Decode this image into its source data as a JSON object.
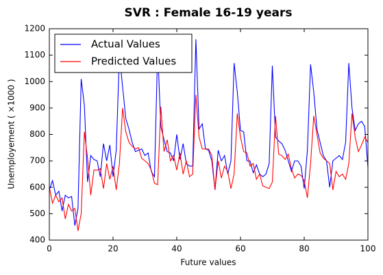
{
  "chart_data": {
    "type": "line",
    "title": "SVR : Female 16-19 years",
    "x_label": "Future values",
    "y_label": "Unemployement ( ×1000 )",
    "x": [
      0,
      1,
      2,
      3,
      4,
      5,
      6,
      7,
      8,
      9,
      10,
      11,
      12,
      13,
      14,
      15,
      16,
      17,
      18,
      19,
      20,
      21,
      22,
      23,
      24,
      25,
      26,
      27,
      28,
      29,
      30,
      31,
      32,
      33,
      34,
      35,
      36,
      37,
      38,
      39,
      40,
      41,
      42,
      43,
      44,
      45,
      46,
      47,
      48,
      49,
      50,
      51,
      52,
      53,
      54,
      55,
      56,
      57,
      58,
      59,
      60,
      61,
      62,
      63,
      64,
      65,
      66,
      67,
      68,
      69,
      70,
      71,
      72,
      73,
      74,
      75,
      76,
      77,
      78,
      79,
      80,
      81,
      82,
      83,
      84,
      85,
      86,
      87,
      88,
      89,
      90,
      91,
      92,
      93,
      94,
      95,
      96,
      97,
      98,
      99,
      100
    ],
    "series": [
      {
        "name": "Actual Values",
        "color": "#0000ff",
        "values": [
          590,
          625,
          570,
          585,
          510,
          570,
          560,
          565,
          455,
          520,
          1010,
          910,
          620,
          720,
          705,
          700,
          640,
          765,
          700,
          760,
          640,
          740,
          1100,
          980,
          860,
          820,
          770,
          735,
          740,
          745,
          720,
          730,
          660,
          640,
          1120,
          830,
          780,
          735,
          730,
          700,
          800,
          705,
          765,
          690,
          680,
          680,
          1160,
          820,
          840,
          745,
          740,
          700,
          590,
          740,
          700,
          720,
          650,
          700,
          1070,
          960,
          815,
          810,
          700,
          700,
          655,
          685,
          650,
          640,
          650,
          690,
          1060,
          790,
          775,
          765,
          740,
          700,
          660,
          700,
          700,
          680,
          595,
          740,
          1065,
          960,
          820,
          770,
          720,
          700,
          600,
          700,
          710,
          720,
          705,
          770,
          1070,
          900,
          815,
          840,
          850,
          830,
          675
        ]
      },
      {
        "name": "Predicted Values",
        "color": "#ff0000",
        "values": [
          600,
          540,
          570,
          545,
          560,
          480,
          535,
          510,
          520,
          435,
          500,
          810,
          710,
          570,
          665,
          665,
          670,
          595,
          690,
          630,
          680,
          590,
          690,
          900,
          810,
          770,
          755,
          745,
          750,
          710,
          700,
          690,
          665,
          615,
          610,
          905,
          735,
          780,
          700,
          720,
          665,
          730,
          650,
          700,
          640,
          650,
          950,
          790,
          745,
          745,
          745,
          720,
          590,
          700,
          635,
          680,
          660,
          595,
          650,
          880,
          790,
          735,
          730,
          680,
          690,
          630,
          650,
          605,
          600,
          595,
          620,
          870,
          725,
          720,
          705,
          725,
          670,
          635,
          650,
          645,
          625,
          560,
          690,
          870,
          800,
          730,
          710,
          700,
          690,
          590,
          660,
          640,
          650,
          630,
          690,
          880,
          790,
          735,
          760,
          790,
          770
        ]
      }
    ],
    "xlim": [
      0,
      100
    ],
    "xticks": [
      0,
      20,
      40,
      60,
      80,
      100
    ],
    "ylim": [
      400,
      1200
    ],
    "yticks": [
      400,
      500,
      600,
      700,
      800,
      900,
      1000,
      1100,
      1200
    ],
    "grid": false,
    "legend": "upper left"
  }
}
